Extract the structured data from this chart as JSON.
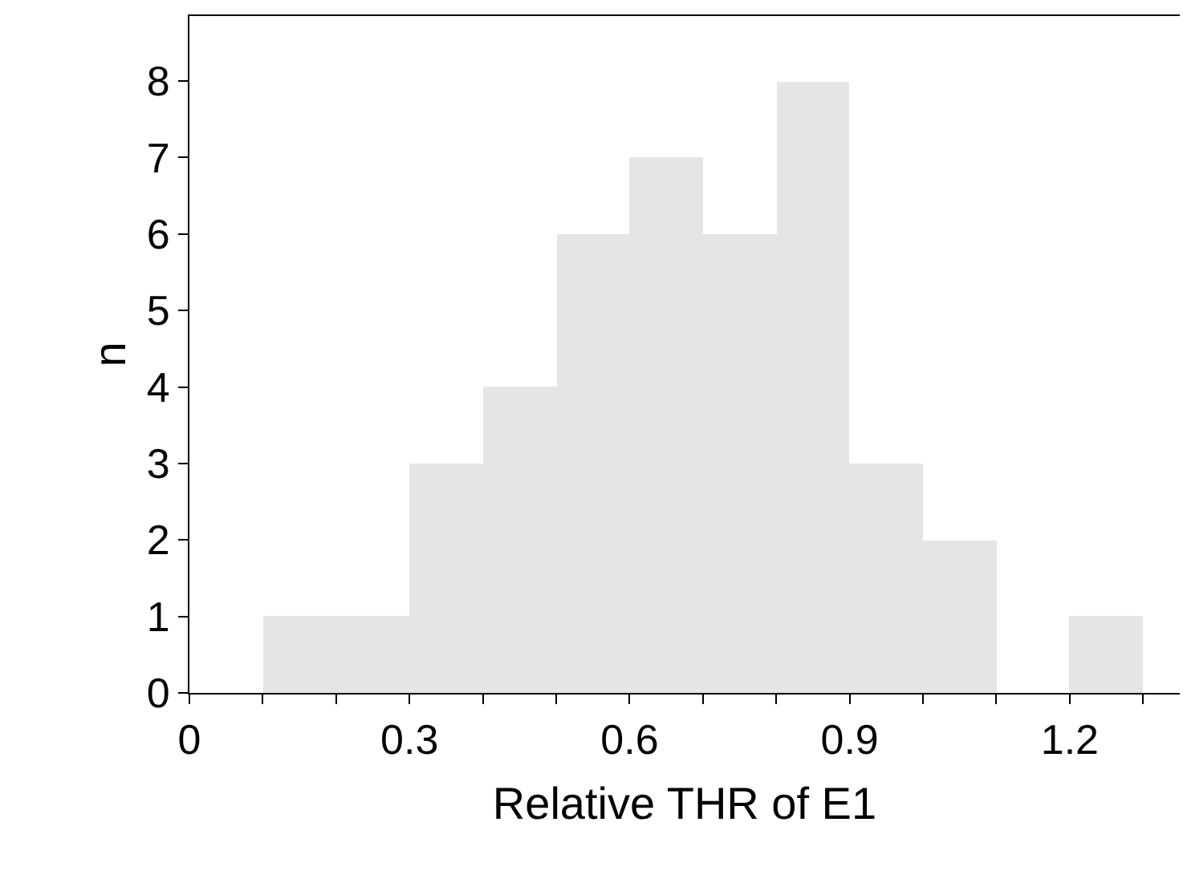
{
  "chart_data": {
    "type": "histogram",
    "xlabel": "Relative THR of E1",
    "ylabel": "n",
    "bins": [
      0.1,
      0.2,
      0.3,
      0.4,
      0.5,
      0.6,
      0.7,
      0.8,
      0.9,
      1.0,
      1.1,
      1.2,
      1.3
    ],
    "values": [
      1,
      1,
      3,
      4,
      6,
      7,
      6,
      8,
      3,
      2,
      0,
      1
    ],
    "color": "#e5e5e5",
    "xlim": [
      0,
      1.35
    ],
    "ylim": [
      0,
      8.85
    ],
    "xticks": [
      0,
      {
        "value": 0.1,
        "label": null
      },
      {
        "value": 0.2,
        "label": null
      },
      0.3,
      {
        "value": 0.4,
        "label": null
      },
      {
        "value": 0.5,
        "label": null
      },
      0.6,
      {
        "value": 0.7,
        "label": null
      },
      {
        "value": 0.8,
        "label": null
      },
      0.9,
      {
        "value": 1.0,
        "label": null
      },
      {
        "value": 1.1,
        "label": null
      },
      1.2,
      {
        "value": 1.3,
        "label": null
      }
    ],
    "yticks": [
      0,
      1,
      2,
      3,
      4,
      5,
      6,
      7,
      8
    ]
  }
}
